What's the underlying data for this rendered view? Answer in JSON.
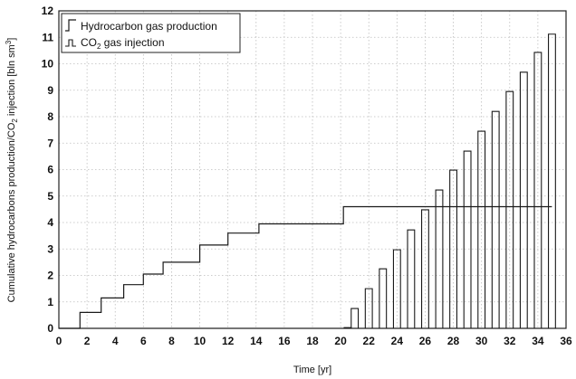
{
  "chart_data": {
    "type": "line",
    "title": "",
    "xlabel": "Time [yr]",
    "ylabel_parts": [
      "Cumulative hydrocarbons production/CO",
      "2",
      " injection [bln sm",
      "3",
      "]"
    ],
    "xlim": [
      0,
      36
    ],
    "ylim": [
      0,
      12
    ],
    "xticks": [
      0,
      2,
      4,
      6,
      8,
      10,
      12,
      14,
      16,
      18,
      20,
      22,
      24,
      26,
      28,
      30,
      32,
      34,
      36
    ],
    "yticks": [
      0,
      1,
      2,
      3,
      4,
      5,
      6,
      7,
      8,
      9,
      10,
      11,
      12
    ],
    "grid": true,
    "legend_position": "top-left",
    "series": [
      {
        "name": "Hydrocarbon gas production",
        "style": "step",
        "x": [
          0,
          1.5,
          1.5,
          3.0,
          3.0,
          4.6,
          4.6,
          6.0,
          6.0,
          7.4,
          7.4,
          10.0,
          10.0,
          12.0,
          12.0,
          14.2,
          14.2,
          20.2,
          20.2,
          35.0
        ],
        "y": [
          0,
          0,
          0.6,
          0.6,
          1.15,
          1.15,
          1.65,
          1.65,
          2.05,
          2.05,
          2.5,
          2.5,
          3.15,
          3.15,
          3.6,
          3.6,
          3.95,
          3.95,
          4.6,
          4.6
        ]
      },
      {
        "name_parts": [
          "CO",
          "2",
          " gas injection"
        ],
        "style": "bars",
        "bar_width": 0.5,
        "x": [
          20.5,
          21.0,
          22.0,
          23.0,
          24.0,
          25.0,
          26.0,
          27.0,
          28.0,
          29.0,
          30.0,
          31.0,
          32.0,
          33.0,
          34.0,
          35.0
        ],
        "y": [
          0.03,
          0.75,
          1.5,
          2.25,
          2.97,
          3.72,
          4.48,
          5.23,
          5.98,
          6.7,
          7.45,
          8.2,
          8.95,
          9.68,
          10.43,
          11.12
        ]
      }
    ]
  }
}
